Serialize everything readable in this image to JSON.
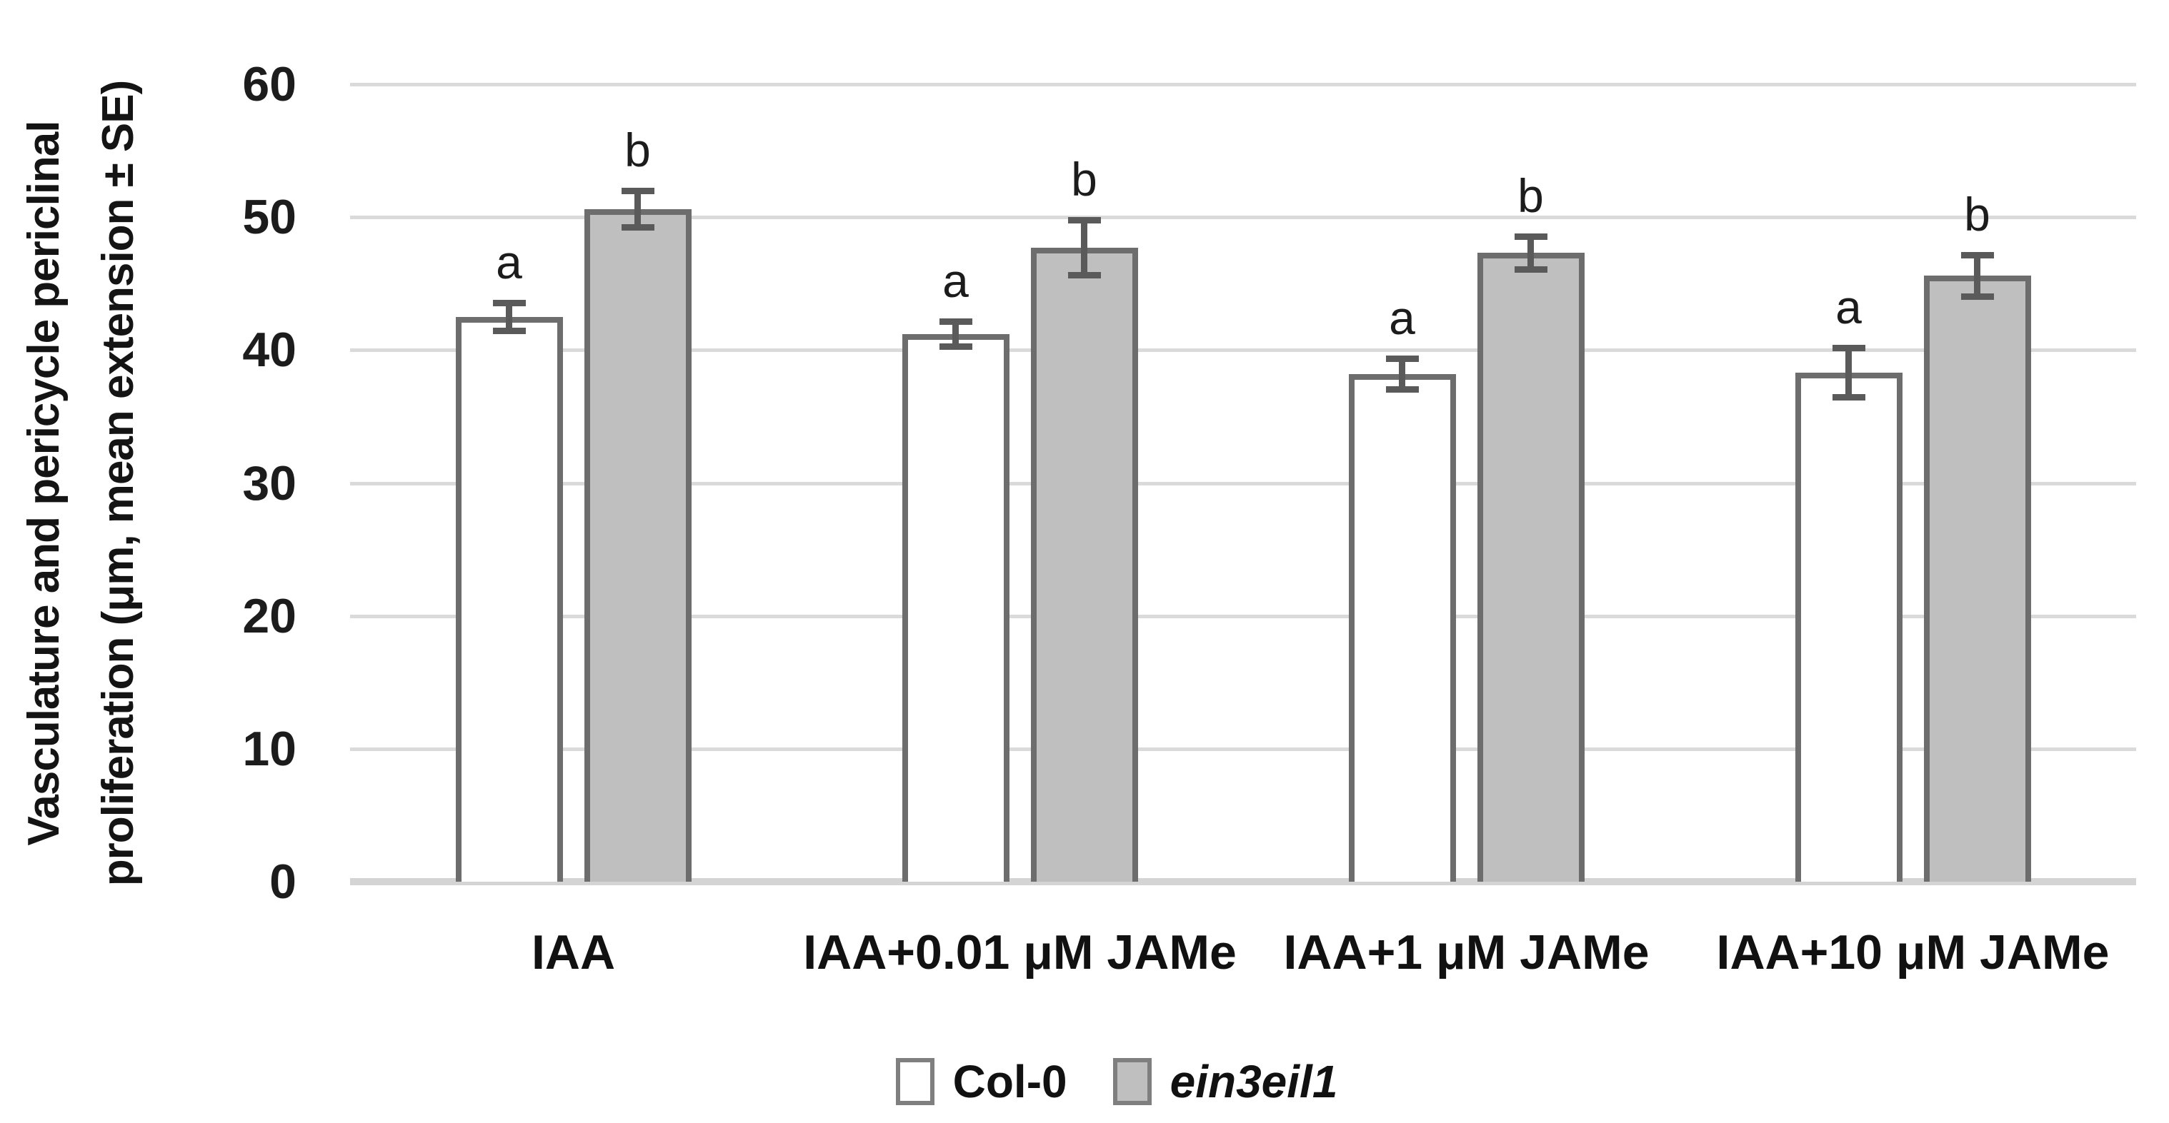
{
  "figure": {
    "y_axis_title_line1": "Vasculature and pericycle periclinal",
    "y_axis_title_line2": "proliferation (μm, mean extension ± SE)"
  },
  "palette": {
    "gridline": "#dadada",
    "axis_line": "#d4d4d4",
    "bar_border": "#6d6d6d",
    "error_bar": "#5a5a5a",
    "text": "#111111",
    "col0_fill": "#ffffff",
    "ein3eil1_fill": "#bfbfbf"
  },
  "chart_data": {
    "type": "bar",
    "title": "",
    "xlabel": "",
    "ylabel": "Vasculature and pericycle periclinal proliferation (μm, mean extension ± SE)",
    "ylim": [
      0,
      60
    ],
    "yticks": [
      0,
      10,
      20,
      30,
      40,
      50,
      60
    ],
    "grid": true,
    "legend_position": "bottom",
    "categories": [
      "IAA",
      "IAA+0.01 μM JAMe",
      "IAA+1 μM JAMe",
      "IAA+10 μM JAMe"
    ],
    "series": [
      {
        "name": "Col-0",
        "italic": false,
        "fill": "#ffffff",
        "border": "#6d6d6d",
        "values": [
          42.5,
          41.2,
          38.2,
          38.3
        ],
        "se": [
          1.3,
          1.2,
          1.4,
          2.1
        ],
        "letters": [
          "a",
          "a",
          "a",
          "a"
        ]
      },
      {
        "name": "ein3eil1",
        "italic": true,
        "fill": "#bfbfbf",
        "border": "#6d6d6d",
        "values": [
          50.6,
          47.7,
          47.3,
          45.6
        ],
        "se": [
          1.6,
          2.3,
          1.5,
          1.8
        ],
        "letters": [
          "b",
          "b",
          "b",
          "b"
        ]
      }
    ]
  }
}
